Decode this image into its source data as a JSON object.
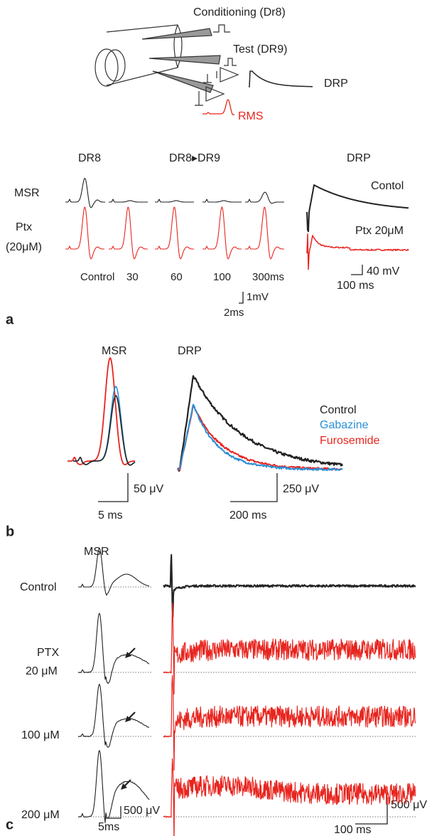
{
  "panel_a": {
    "label": "a",
    "schematic": {
      "conditioning": "Conditioning (Dr8)",
      "test": "Test (DR9)",
      "drp": "DRP",
      "rms": "RMS"
    },
    "headers": {
      "dr8": "DR8",
      "dr8_dr9": "DR8▸DR9",
      "drp": "DRP"
    },
    "rows": {
      "msr": "MSR",
      "ptx": "Ptx",
      "ptx_conc": "(20μM)"
    },
    "intervals": [
      "Control",
      "30",
      "60",
      "100",
      "300ms"
    ],
    "scale": {
      "voltage": "1mV",
      "time": "2ms"
    },
    "drp_traces": {
      "control": "Contol",
      "ptx": "Ptx 20μM"
    },
    "drp_scale": {
      "voltage": "40 mV",
      "time": "100 ms"
    }
  },
  "panel_b": {
    "label": "b",
    "msr": "MSR",
    "drp": "DRP",
    "legend": [
      "Control",
      "Gabazine",
      "Furosemide"
    ],
    "msr_scale": {
      "voltage": "50 μV",
      "time": "5 ms"
    },
    "drp_scale": {
      "voltage": "250 μV",
      "time": "200 ms"
    }
  },
  "panel_c": {
    "label": "c",
    "msr": "MSR",
    "rows": [
      "Control",
      "PTX",
      "20 μM",
      "100 μM",
      "200 μM"
    ],
    "msr_scale": {
      "voltage": "500 μV",
      "time": "5ms"
    },
    "drp_scale": {
      "voltage": "500 μV",
      "time": "100 ms"
    }
  }
}
